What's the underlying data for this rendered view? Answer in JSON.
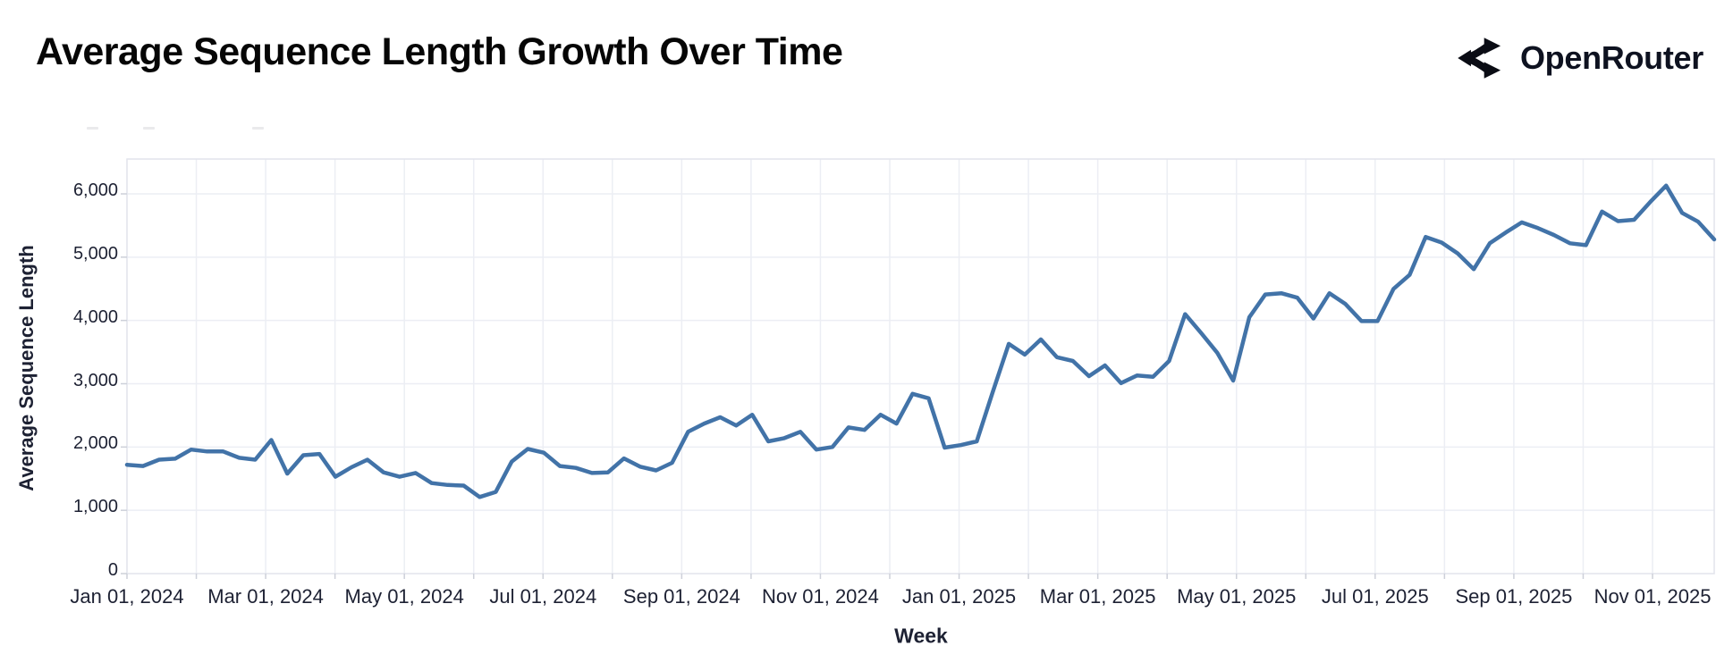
{
  "header": {
    "title": "Average Sequence Length Growth Over Time",
    "logo_text": "OpenRouter"
  },
  "chart_data": {
    "type": "line",
    "title": "Average Sequence Length Growth Over Time",
    "xlabel": "Week",
    "ylabel": "Average Sequence Length",
    "x_tick_labels": [
      "Jan 01, 2024",
      "Mar 01, 2024",
      "May 01, 2024",
      "Jul 01, 2024",
      "Sep 01, 2024",
      "Nov 01, 2024",
      "Jan 01, 2025",
      "Mar 01, 2025",
      "May 01, 2025",
      "Jul 01, 2025",
      "Sep 01, 2025",
      "Nov 01, 2025"
    ],
    "y_tick_labels": [
      "0",
      "1,000",
      "2,000",
      "3,000",
      "4,000",
      "5,000",
      "6,000"
    ],
    "y_tick_values": [
      0,
      1000,
      2000,
      3000,
      4000,
      5000,
      6000
    ],
    "ylim": [
      0,
      6600
    ],
    "x_start": "Jan 01, 2024",
    "x_interval": "weekly",
    "grid": true,
    "legend_position": "none",
    "series": [
      {
        "name": "Average Sequence Length",
        "color": "#4273a8",
        "values": [
          1720,
          1700,
          1800,
          1815,
          1960,
          1930,
          1930,
          1830,
          1800,
          2110,
          1580,
          1870,
          1890,
          1530,
          1680,
          1800,
          1600,
          1530,
          1590,
          1430,
          1400,
          1390,
          1210,
          1290,
          1770,
          1970,
          1910,
          1700,
          1670,
          1590,
          1600,
          1820,
          1690,
          1630,
          1750,
          2240,
          2370,
          2470,
          2340,
          2510,
          2090,
          2140,
          2240,
          1960,
          2000,
          2310,
          2270,
          2510,
          2370,
          2840,
          2770,
          1990,
          2030,
          2090,
          2870,
          3630,
          3460,
          3700,
          3420,
          3360,
          3120,
          3290,
          3010,
          3130,
          3110,
          3360,
          4100,
          3800,
          3490,
          3050,
          4050,
          4410,
          4430,
          4360,
          4030,
          4430,
          4260,
          3990,
          3990,
          4500,
          4720,
          5320,
          5230,
          5060,
          4810,
          5220,
          5390,
          5550,
          5460,
          5350,
          5220,
          5190,
          5720,
          5570,
          5590,
          5870,
          6130,
          5700,
          5560,
          5280
        ]
      }
    ]
  },
  "colors": {
    "background": "#ffffff",
    "line": "#4273a8",
    "gridline": "#eceef4",
    "plot_border": "#e2e4ec",
    "tick_text": "#1d2133",
    "title_text": "#060606",
    "logo": "#0e1220"
  }
}
